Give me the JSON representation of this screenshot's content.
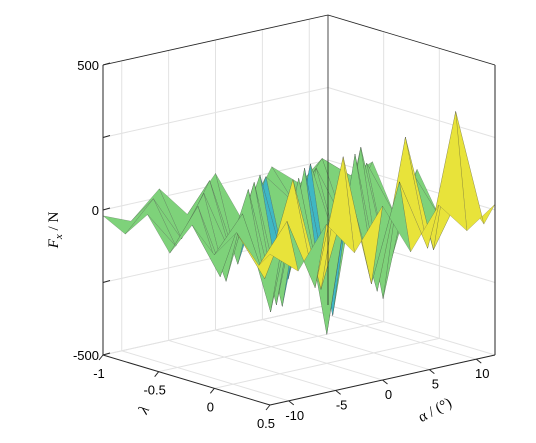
{
  "chart_data": {
    "type": "surface",
    "title": "",
    "zlabel": {
      "main": "F",
      "sub": "x",
      "unit": " / N"
    },
    "xlabel": "λ",
    "ylabel": "α / (°)",
    "x_range": [
      -1,
      0.5
    ],
    "y_range": [
      -12,
      12
    ],
    "z_range": [
      -500,
      500
    ],
    "x_ticks": [
      -1,
      -0.5,
      0,
      0.5
    ],
    "x_tick_labels": [
      "-1",
      "-0.5",
      "0",
      "0.5"
    ],
    "y_ticks": [
      -10,
      -5,
      0,
      5,
      10
    ],
    "y_tick_labels": [
      "-10",
      "-5",
      "0",
      "5",
      "10"
    ],
    "z_ticks": [
      -500,
      -250,
      0,
      250,
      500
    ],
    "z_tick_labels": [
      "-500",
      "",
      "0",
      "",
      "500"
    ],
    "grid": true,
    "colormap": [
      "#0d3a9e",
      "#1f72d6",
      "#3fb7c4",
      "#7ed27a",
      "#e8e33a",
      "#f2b629",
      "#e85b20",
      "#b5170f"
    ],
    "surface": {
      "x": [
        -1,
        -0.8,
        -0.6,
        -0.4,
        -0.2,
        0,
        0.2,
        0.4,
        0.5
      ],
      "y": [
        -12,
        -9,
        -6,
        -3,
        0,
        3,
        6,
        9,
        12
      ],
      "z": [
        [
          -20,
          -60,
          30,
          -80,
          40,
          -150,
          20,
          -60,
          -40
        ],
        [
          -60,
          40,
          -120,
          60,
          -250,
          30,
          -80,
          50,
          -30
        ],
        [
          30,
          -100,
          60,
          -180,
          80,
          -300,
          60,
          -150,
          40
        ],
        [
          -80,
          60,
          -220,
          100,
          -350,
          120,
          -200,
          80,
          -120
        ],
        [
          40,
          -160,
          120,
          -300,
          150,
          -380,
          180,
          -260,
          60
        ],
        [
          -40,
          80,
          -280,
          160,
          -400,
          200,
          -320,
          100,
          -80
        ],
        [
          60,
          -120,
          200,
          -200,
          120,
          -250,
          260,
          -150,
          30
        ],
        [
          -30,
          100,
          -150,
          280,
          -180,
          150,
          -100,
          350,
          -60
        ],
        [
          20,
          -60,
          80,
          -40,
          100,
          -80,
          60,
          -50,
          20
        ]
      ]
    }
  }
}
